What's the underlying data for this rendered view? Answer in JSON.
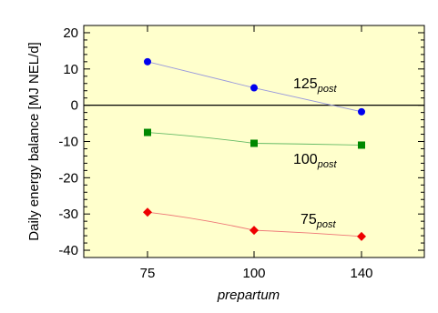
{
  "chart_data": {
    "type": "line",
    "xlabel": "prepartum",
    "ylabel": "Daily energy balance [MJ NEL/d]",
    "categories": [
      "75",
      "100",
      "140"
    ],
    "ylim": [
      -42,
      22
    ],
    "yticks": [
      20,
      10,
      0,
      -10,
      -20,
      -30,
      -40
    ],
    "grid": false,
    "colors": {
      "plot_background": "#ffffcc",
      "zero_line": "#000000"
    },
    "series": [
      {
        "name_main": "125",
        "name_sub": "post",
        "marker": "circle",
        "color": "#0000ee",
        "line_color": "#9999dd",
        "values": [
          12,
          4.8,
          -1.8
        ]
      },
      {
        "name_main": "100",
        "name_sub": "post",
        "marker": "square",
        "color": "#008800",
        "line_color": "#66bb66",
        "values": [
          -7.5,
          -10.5,
          -11
        ]
      },
      {
        "name_main": "75",
        "name_sub": "post",
        "marker": "diamond",
        "color": "#ee0000",
        "line_color": "#ee7777",
        "values": [
          -29.5,
          -34.5,
          -36.2
        ]
      }
    ]
  }
}
